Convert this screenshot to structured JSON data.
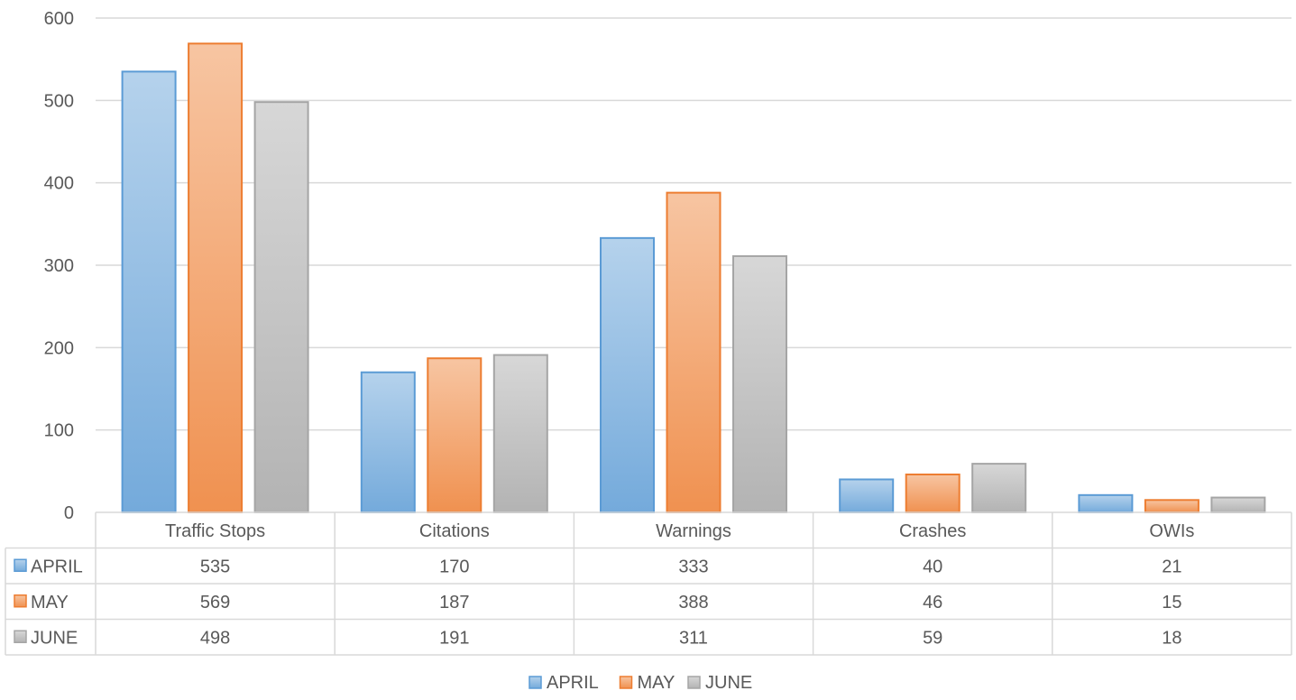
{
  "chart_data": {
    "type": "bar",
    "title": "",
    "xlabel": "",
    "ylabel": "",
    "categories": [
      "Traffic Stops",
      "Citations",
      "Warnings",
      "Crashes",
      "OWIs"
    ],
    "series": [
      {
        "name": "APRIL",
        "values": [
          535,
          170,
          333,
          40,
          21
        ],
        "color": "#5B9BD5"
      },
      {
        "name": "MAY",
        "values": [
          569,
          187,
          388,
          46,
          15
        ],
        "color": "#ED7D31"
      },
      {
        "name": "JUNE",
        "values": [
          498,
          191,
          311,
          59,
          18
        ],
        "color": "#A5A5A5"
      }
    ],
    "ylim": [
      0,
      600
    ],
    "yticks": [
      0,
      100,
      200,
      300,
      400,
      500,
      600
    ],
    "grid": true,
    "legend": "bottom-center",
    "data_table": true
  }
}
